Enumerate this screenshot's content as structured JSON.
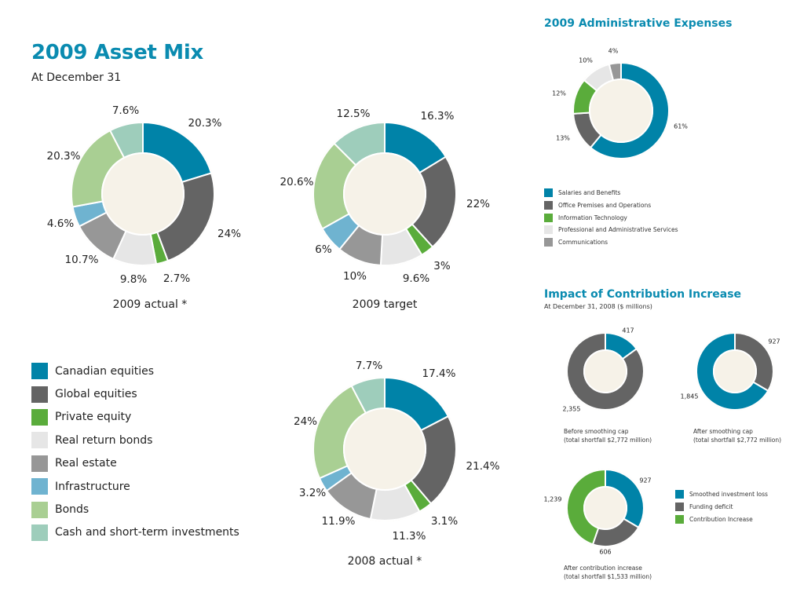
{
  "header": {
    "title": "2009 Asset Mix",
    "subtitle": "At December 31"
  },
  "asset_legend": [
    {
      "label": "Canadian equities",
      "color": "#0083a8"
    },
    {
      "label": "Global equities",
      "color": "#646464"
    },
    {
      "label": "Private equity",
      "color": "#5aac3b"
    },
    {
      "label": "Real return bonds",
      "color": "#e6e6e6"
    },
    {
      "label": "Real estate",
      "color": "#979797"
    },
    {
      "label": "Infrastructure",
      "color": "#6fb3d0"
    },
    {
      "label": "Bonds",
      "color": "#a9cf93"
    },
    {
      "label": "Cash and short-term investments",
      "color": "#9ecdbb"
    }
  ],
  "admin": {
    "title": "2009 Administrative Expenses",
    "legend": [
      {
        "label": "Salaries and Benefits",
        "color": "#0083a8"
      },
      {
        "label": "Office Premises and Operations",
        "color": "#646464"
      },
      {
        "label": "Information Technology",
        "color": "#5aac3b"
      },
      {
        "label": "Professional and Administrative Services",
        "color": "#e6e6e6"
      },
      {
        "label": "Communications",
        "color": "#979797"
      }
    ]
  },
  "impact": {
    "title": "Impact of Contribution Increase",
    "subtitle": "At December 31, 2008 ($ millions)",
    "legend": [
      {
        "label": "Smoothed investment loss",
        "color": "#0083a8"
      },
      {
        "label": "Funding deficit",
        "color": "#646464"
      },
      {
        "label": "Contribution Increase",
        "color": "#5aac3b"
      }
    ],
    "captions": {
      "before": [
        "Before smoothing cap",
        "(total shortfall $2,772 million)"
      ],
      "after": [
        "After smoothing cap",
        "(total shortfall $2,772 million)"
      ],
      "contribution": [
        "After contribution increase",
        "(total shortfall $1,533 million)"
      ]
    }
  },
  "chart_data": [
    {
      "type": "pie",
      "id": "actual2009",
      "title": "2009 actual *",
      "categories": [
        "Canadian equities",
        "Global equities",
        "Private equity",
        "Real return bonds",
        "Real estate",
        "Infrastructure",
        "Bonds",
        "Cash and short-term investments"
      ],
      "values": [
        20.3,
        24,
        2.7,
        9.8,
        10.7,
        4.6,
        20.3,
        7.6
      ],
      "labels": [
        "20.3%",
        "24%",
        "2.7%",
        "9.8%",
        "10.7%",
        "4.6%",
        "20.3%",
        "7.6%"
      ]
    },
    {
      "type": "pie",
      "id": "target2009",
      "title": "2009 target",
      "categories": [
        "Canadian equities",
        "Global equities",
        "Private equity",
        "Real return bonds",
        "Real estate",
        "Infrastructure",
        "Bonds",
        "Cash and short-term investments"
      ],
      "values": [
        16.3,
        22,
        3,
        9.6,
        10,
        6,
        20.6,
        12.5
      ],
      "labels": [
        "16.3%",
        "22%",
        "3%",
        "9.6%",
        "10%",
        "6%",
        "20.6%",
        "12.5%"
      ]
    },
    {
      "type": "pie",
      "id": "actual2008",
      "title": "2008 actual *",
      "categories": [
        "Canadian equities",
        "Global equities",
        "Private equity",
        "Real return bonds",
        "Real estate",
        "Infrastructure",
        "Bonds",
        "Cash and short-term investments"
      ],
      "values": [
        17.4,
        21.4,
        3.1,
        11.3,
        11.9,
        3.2,
        24,
        7.7
      ],
      "labels": [
        "17.4%",
        "21.4%",
        "3.1%",
        "11.3%",
        "11.9%",
        "3.2%",
        "24%",
        "7.7%"
      ]
    },
    {
      "type": "pie",
      "id": "admin2009",
      "title": "2009 Administrative Expenses",
      "categories": [
        "Salaries and Benefits",
        "Office Premises and Operations",
        "Information Technology",
        "Professional and Administrative Services",
        "Communications"
      ],
      "values": [
        61,
        13,
        12,
        10,
        4
      ],
      "labels": [
        "61%",
        "13%",
        "12%",
        "10%",
        "4%"
      ]
    },
    {
      "type": "pie",
      "id": "before_cap",
      "title": "Before smoothing cap",
      "categories": [
        "Smoothed investment loss",
        "Funding deficit"
      ],
      "values": [
        417,
        2355
      ],
      "labels": [
        "417",
        "2,355"
      ]
    },
    {
      "type": "pie",
      "id": "after_cap",
      "title": "After smoothing cap",
      "categories": [
        "Funding deficit",
        "Smoothed investment loss"
      ],
      "values": [
        927,
        1845
      ],
      "labels": [
        "927",
        "1,845"
      ]
    },
    {
      "type": "pie",
      "id": "after_contribution",
      "title": "After contribution increase",
      "categories": [
        "Smoothed investment loss",
        "Funding deficit",
        "Contribution Increase"
      ],
      "values": [
        927,
        606,
        1239
      ],
      "labels": [
        "927",
        "606",
        "1,239"
      ]
    }
  ]
}
